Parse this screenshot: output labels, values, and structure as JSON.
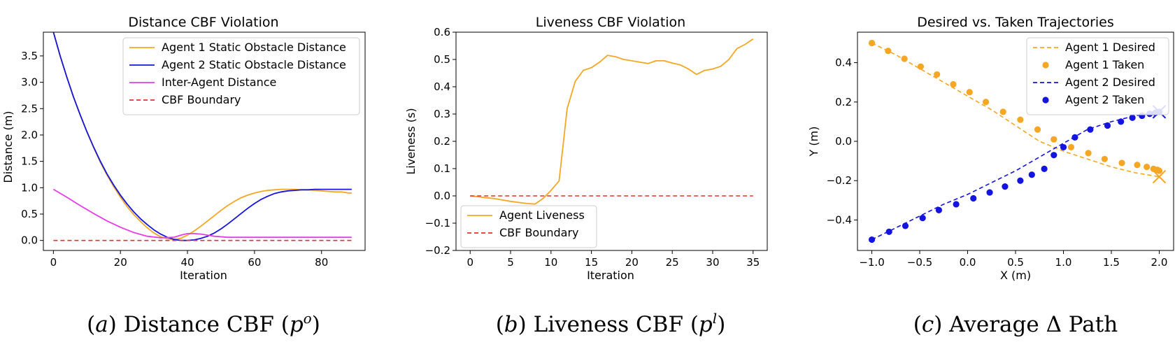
{
  "captions": [
    {
      "letter": "a",
      "text": "Distance CBF",
      "sym": "p",
      "sup": "o"
    },
    {
      "letter": "b",
      "text": "Liveness CBF",
      "sym": "p",
      "sup": "l"
    },
    {
      "letter": "c",
      "text": "Average Δ Path"
    }
  ],
  "chart_data": [
    {
      "type": "line",
      "title": "Distance CBF Violation",
      "xlabel": "Iteration",
      "ylabel": "Distance (m)",
      "xlim": [
        -3,
        93
      ],
      "ylim": [
        -0.19,
        3.95
      ],
      "xticks": [
        0,
        20,
        40,
        60,
        80
      ],
      "yticks": [
        0.0,
        0.5,
        1.0,
        1.5,
        2.0,
        2.5,
        3.0,
        3.5
      ],
      "ytick_labels": [
        "0.0",
        "0.5",
        "1.0",
        "1.5",
        "2.0",
        "2.5",
        "3.0",
        "3.5"
      ],
      "legend_position": "top-right",
      "series": [
        {
          "name": "Agent 1 Static Obstacle Distance",
          "color": "#f5a623",
          "style": "solid",
          "x": [
            0,
            2,
            4,
            6,
            8,
            10,
            12,
            14,
            16,
            18,
            20,
            22,
            24,
            26,
            28,
            30,
            32,
            34,
            36,
            38,
            40,
            42,
            44,
            46,
            48,
            50,
            52,
            54,
            56,
            58,
            60,
            62,
            64,
            66,
            68,
            70,
            72,
            74,
            76,
            78,
            80,
            82,
            84,
            86,
            88,
            89
          ],
          "y": [
            3.95,
            3.5,
            3.1,
            2.72,
            2.38,
            2.06,
            1.76,
            1.48,
            1.24,
            1.02,
            0.82,
            0.64,
            0.49,
            0.36,
            0.24,
            0.14,
            0.07,
            0.03,
            0.02,
            0.04,
            0.1,
            0.18,
            0.27,
            0.37,
            0.47,
            0.57,
            0.66,
            0.74,
            0.81,
            0.86,
            0.9,
            0.93,
            0.95,
            0.96,
            0.97,
            0.97,
            0.97,
            0.96,
            0.96,
            0.95,
            0.94,
            0.93,
            0.92,
            0.92,
            0.9,
            0.9
          ]
        },
        {
          "name": "Agent 2 Static Obstacle Distance",
          "color": "#1414e0",
          "style": "solid",
          "x": [
            0,
            2,
            4,
            6,
            8,
            10,
            12,
            14,
            16,
            18,
            20,
            22,
            24,
            26,
            28,
            30,
            32,
            34,
            36,
            38,
            40,
            42,
            44,
            46,
            48,
            50,
            52,
            54,
            56,
            58,
            60,
            62,
            64,
            66,
            68,
            70,
            72,
            74,
            76,
            78,
            80,
            82,
            84,
            86,
            88,
            89
          ],
          "y": [
            3.95,
            3.5,
            3.1,
            2.72,
            2.38,
            2.06,
            1.77,
            1.5,
            1.26,
            1.05,
            0.86,
            0.69,
            0.54,
            0.41,
            0.3,
            0.2,
            0.12,
            0.06,
            0.02,
            0.0,
            0.0,
            0.01,
            0.04,
            0.08,
            0.14,
            0.22,
            0.31,
            0.41,
            0.51,
            0.61,
            0.7,
            0.78,
            0.84,
            0.89,
            0.92,
            0.94,
            0.95,
            0.96,
            0.96,
            0.97,
            0.97,
            0.97,
            0.97,
            0.97,
            0.97,
            0.97
          ]
        },
        {
          "name": "Inter-Agent Distance",
          "color": "#e53de8",
          "style": "solid",
          "x": [
            0,
            4,
            8,
            12,
            16,
            20,
            24,
            28,
            32,
            36,
            38,
            40,
            42,
            44,
            46,
            48,
            52,
            56,
            60,
            70,
            80,
            89
          ],
          "y": [
            0.97,
            0.82,
            0.66,
            0.51,
            0.37,
            0.25,
            0.15,
            0.08,
            0.05,
            0.06,
            0.1,
            0.13,
            0.13,
            0.12,
            0.1,
            0.08,
            0.06,
            0.06,
            0.06,
            0.06,
            0.06,
            0.06
          ]
        },
        {
          "name": "CBF Boundary",
          "color": "#e8302a",
          "style": "dashed",
          "x": [
            0,
            89
          ],
          "y": [
            0,
            0
          ]
        }
      ]
    },
    {
      "type": "line",
      "title": "Liveness CBF Violation",
      "xlabel": "Iteration",
      "ylabel": "Liveness (s)",
      "xlim": [
        -1.75,
        36.75
      ],
      "ylim": [
        -0.2,
        0.6
      ],
      "xticks": [
        0,
        5,
        10,
        15,
        20,
        25,
        30,
        35
      ],
      "yticks": [
        -0.2,
        -0.1,
        0.0,
        0.1,
        0.2,
        0.3,
        0.4,
        0.5,
        0.6
      ],
      "ytick_labels": [
        "−0.2",
        "−0.1",
        "0.0",
        "0.1",
        "0.2",
        "0.3",
        "0.4",
        "0.5",
        "0.6"
      ],
      "legend_position": "lower-left",
      "series": [
        {
          "name": "Agent Liveness",
          "color": "#f5a623",
          "style": "solid",
          "x": [
            0,
            1,
            2,
            3,
            4,
            5,
            6,
            7,
            8,
            9,
            10,
            11,
            12,
            13,
            14,
            15,
            16,
            17,
            18,
            19,
            20,
            21,
            22,
            23,
            24,
            25,
            26,
            27,
            28,
            29,
            30,
            31,
            32,
            33,
            34,
            35
          ],
          "y": [
            0.0,
            -0.003,
            -0.007,
            -0.01,
            -0.015,
            -0.02,
            -0.024,
            -0.028,
            -0.03,
            -0.01,
            0.02,
            0.055,
            0.32,
            0.42,
            0.46,
            0.47,
            0.49,
            0.515,
            0.51,
            0.5,
            0.495,
            0.49,
            0.485,
            0.495,
            0.495,
            0.487,
            0.48,
            0.465,
            0.445,
            0.46,
            0.465,
            0.475,
            0.5,
            0.54,
            0.555,
            0.575
          ]
        },
        {
          "name": "CBF Boundary",
          "color": "#e8302a",
          "style": "dashed",
          "x": [
            0,
            35
          ],
          "y": [
            0,
            0
          ]
        }
      ]
    },
    {
      "type": "scatter",
      "title": "Desired vs. Taken Trajectories",
      "xlabel": "X (m)",
      "ylabel": "Y (m)",
      "xlim": [
        -1.15,
        2.15
      ],
      "ylim": [
        -0.555,
        0.555
      ],
      "xticks": [
        -1.0,
        -0.5,
        0.0,
        0.5,
        1.0,
        1.5,
        2.0
      ],
      "xtick_labels": [
        "−1.0",
        "−0.5",
        "0.0",
        "0.5",
        "1.0",
        "1.5",
        "2.0"
      ],
      "yticks": [
        -0.4,
        -0.2,
        0.0,
        0.2,
        0.4
      ],
      "ytick_labels": [
        "−0.4",
        "−0.2",
        "0.0",
        "0.2",
        "0.4"
      ],
      "legend_position": "top-right",
      "series": [
        {
          "name": "Agent 1 Desired",
          "color": "#f5a623",
          "style": "dashed",
          "x": [
            -1.0,
            -0.75,
            -0.5,
            -0.25,
            0.0,
            0.25,
            0.5,
            0.75,
            1.0,
            1.25,
            1.5,
            1.75,
            2.0
          ],
          "y": [
            0.5,
            0.44,
            0.37,
            0.3,
            0.23,
            0.16,
            0.08,
            0.0,
            -0.05,
            -0.09,
            -0.13,
            -0.16,
            -0.18
          ]
        },
        {
          "name": "Agent 1 Taken",
          "color": "#f5a623",
          "style": "markers",
          "x": [
            -1.0,
            -0.83,
            -0.66,
            -0.49,
            -0.32,
            -0.15,
            0.02,
            0.19,
            0.37,
            0.55,
            0.73,
            0.9,
            1.08,
            1.26,
            1.43,
            1.61,
            1.77,
            1.87,
            1.94,
            1.98,
            2.0
          ],
          "y": [
            0.5,
            0.46,
            0.42,
            0.38,
            0.34,
            0.29,
            0.25,
            0.2,
            0.15,
            0.11,
            0.06,
            0.01,
            -0.03,
            -0.06,
            -0.09,
            -0.11,
            -0.12,
            -0.13,
            -0.14,
            -0.145,
            -0.15
          ]
        },
        {
          "name": "Agent 2 Desired",
          "color": "#1414e0",
          "style": "dashed",
          "x": [
            -1.0,
            -0.75,
            -0.5,
            -0.25,
            0.0,
            0.25,
            0.5,
            0.75,
            1.0,
            1.25,
            1.5,
            1.75,
            2.0
          ],
          "y": [
            -0.5,
            -0.44,
            -0.38,
            -0.32,
            -0.27,
            -0.21,
            -0.15,
            -0.08,
            -0.01,
            0.06,
            0.1,
            0.13,
            0.15
          ]
        },
        {
          "name": "Agent 2 Taken",
          "color": "#1414e0",
          "style": "markers",
          "x": [
            -1.0,
            -0.82,
            -0.65,
            -0.47,
            -0.3,
            -0.12,
            0.06,
            0.23,
            0.39,
            0.55,
            0.67,
            0.8,
            0.9,
            1.0,
            1.12,
            1.28,
            1.46,
            1.6,
            1.72,
            1.82,
            1.9,
            1.96,
            2.0
          ],
          "y": [
            -0.5,
            -0.46,
            -0.43,
            -0.39,
            -0.35,
            -0.32,
            -0.29,
            -0.26,
            -0.23,
            -0.2,
            -0.17,
            -0.14,
            -0.07,
            -0.03,
            0.02,
            0.06,
            0.08,
            0.1,
            0.12,
            0.13,
            0.14,
            0.145,
            0.15
          ]
        }
      ]
    }
  ]
}
